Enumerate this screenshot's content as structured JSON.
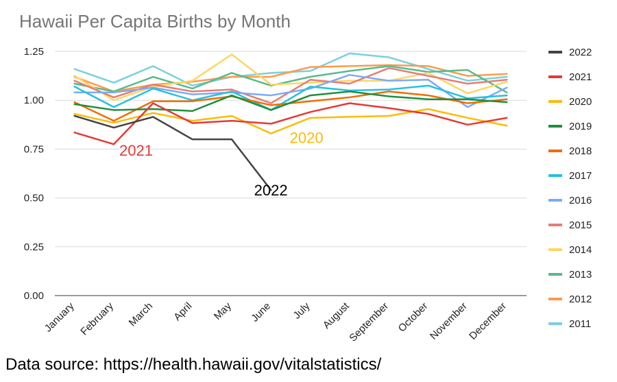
{
  "chart_data": {
    "type": "line",
    "title": "Hawaii Per Capita  Births by Month",
    "xlabel": "",
    "ylabel": "",
    "categories": [
      "January",
      "February",
      "March",
      "April",
      "May",
      "June",
      "July",
      "August",
      "September",
      "October",
      "November",
      "December"
    ],
    "ylim": [
      0,
      1.25
    ],
    "yticks": [
      "0.00",
      "0.25",
      "0.50",
      "0.75",
      "1.00",
      "1.25"
    ],
    "ytick_values": [
      0,
      0.25,
      0.5,
      0.75,
      1.0,
      1.25
    ],
    "grid": true,
    "legend_position": "right",
    "series": [
      {
        "name": "2022",
        "color": "#424242",
        "values": [
          0.92,
          0.86,
          0.915,
          0.8,
          0.8,
          0.54,
          null,
          null,
          null,
          null,
          null,
          null
        ]
      },
      {
        "name": "2021",
        "color": "#e53935",
        "values": [
          0.835,
          0.775,
          0.985,
          0.883,
          0.895,
          0.88,
          0.94,
          0.985,
          0.96,
          0.93,
          0.875,
          0.91
        ]
      },
      {
        "name": "2020",
        "color": "#fbbc04",
        "values": [
          0.93,
          0.885,
          0.935,
          0.895,
          0.92,
          0.83,
          0.91,
          0.915,
          0.92,
          0.955,
          0.91,
          0.87
        ]
      },
      {
        "name": "2019",
        "color": "#1e8e3e",
        "values": [
          0.98,
          0.95,
          0.955,
          0.945,
          1.025,
          0.95,
          1.025,
          1.045,
          1.02,
          1.005,
          1.005,
          0.99
        ]
      },
      {
        "name": "2018",
        "color": "#f16c00",
        "values": [
          0.99,
          0.895,
          0.995,
          0.995,
          1.02,
          0.975,
          0.995,
          1.015,
          1.045,
          1.025,
          0.985,
          1.005
        ]
      },
      {
        "name": "2017",
        "color": "#24c1e0",
        "values": [
          1.07,
          0.965,
          1.06,
          1.0,
          1.045,
          0.95,
          1.07,
          1.05,
          1.055,
          1.075,
          1.01,
          1.025
        ]
      },
      {
        "name": "2016",
        "color": "#7baaf7",
        "values": [
          1.04,
          1.04,
          1.065,
          1.03,
          1.04,
          1.025,
          1.06,
          1.13,
          1.1,
          1.105,
          0.965,
          1.065
        ]
      },
      {
        "name": "2015",
        "color": "#e67c73",
        "values": [
          1.1,
          1.015,
          1.08,
          1.045,
          1.055,
          0.985,
          1.105,
          1.085,
          1.165,
          1.125,
          1.085,
          1.105
        ]
      },
      {
        "name": "2014",
        "color": "#fdd663",
        "values": [
          1.125,
          1.0,
          1.07,
          1.1,
          1.235,
          1.08,
          1.09,
          1.1,
          1.1,
          1.14,
          1.035,
          1.095
        ]
      },
      {
        "name": "2013",
        "color": "#57bb8a",
        "values": [
          1.085,
          1.045,
          1.12,
          1.06,
          1.14,
          1.075,
          1.12,
          1.15,
          1.175,
          1.145,
          1.155,
          1.04
        ]
      },
      {
        "name": "2012",
        "color": "#ff994d",
        "values": [
          1.12,
          1.045,
          1.08,
          1.095,
          1.12,
          1.12,
          1.17,
          1.175,
          1.18,
          1.175,
          1.125,
          1.135
        ]
      },
      {
        "name": "2011",
        "color": "#78d1dc",
        "values": [
          1.16,
          1.09,
          1.175,
          1.075,
          1.12,
          1.14,
          1.15,
          1.24,
          1.22,
          1.16,
          1.1,
          1.12
        ]
      }
    ],
    "annotations": [
      {
        "text": "2021",
        "color": "#e53935",
        "x": "February",
        "y": 0.745
      },
      {
        "text": "2020",
        "color": "#fbbc04",
        "x": "July",
        "y": 0.81
      },
      {
        "text": "2022",
        "color": "#000000",
        "x": "July",
        "y": 0.54
      }
    ]
  },
  "footer": {
    "source_text": "Data source: https://health.hawaii.gov/vitalstatistics/"
  }
}
